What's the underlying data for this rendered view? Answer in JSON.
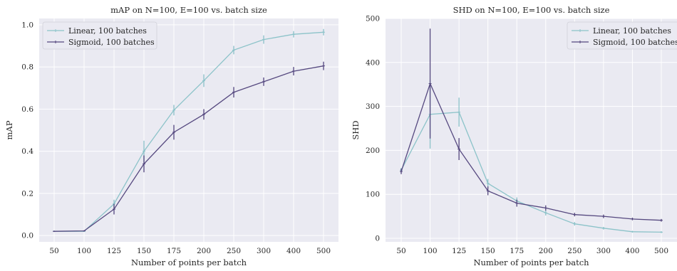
{
  "chart_data": [
    {
      "type": "line",
      "title": "mAP on N=100, E=100 vs. batch size",
      "xlabel": "Number of points per batch",
      "ylabel": "mAP",
      "categories": [
        "50",
        "100",
        "125",
        "150",
        "175",
        "200",
        "250",
        "300",
        "400",
        "500"
      ],
      "ylim": [
        -0.03,
        1.03
      ],
      "yticks": [
        0.0,
        0.2,
        0.4,
        0.6,
        0.8,
        1.0
      ],
      "ytick_labels": [
        "0.0",
        "0.2",
        "0.4",
        "0.6",
        "0.8",
        "1.0"
      ],
      "grid": true,
      "legend": "top-left",
      "series": [
        {
          "name": "Linear, 100 batches",
          "color": "#8cc3c9",
          "values": [
            0.02,
            0.02,
            0.15,
            0.4,
            0.595,
            0.735,
            0.88,
            0.93,
            0.955,
            0.965
          ],
          "errors": [
            0.003,
            0.003,
            0.02,
            0.05,
            0.025,
            0.03,
            0.02,
            0.02,
            0.015,
            0.015
          ]
        },
        {
          "name": "Sigmoid, 100 batches",
          "color": "#55487f",
          "values": [
            0.02,
            0.022,
            0.125,
            0.34,
            0.49,
            0.575,
            0.68,
            0.73,
            0.78,
            0.805
          ],
          "errors": [
            0.003,
            0.003,
            0.025,
            0.04,
            0.035,
            0.025,
            0.025,
            0.02,
            0.02,
            0.02
          ]
        }
      ]
    },
    {
      "type": "line",
      "title": "SHD on N=100, E=100 vs. batch size",
      "xlabel": "Number of points per batch",
      "ylabel": "SHD",
      "categories": [
        "50",
        "100",
        "125",
        "150",
        "175",
        "200",
        "250",
        "300",
        "400",
        "500"
      ],
      "ylim": [
        -8,
        500
      ],
      "yticks": [
        0,
        100,
        200,
        300,
        400,
        500
      ],
      "ytick_labels": [
        "0",
        "100",
        "200",
        "300",
        "400",
        "500"
      ],
      "grid": true,
      "legend": "top-right",
      "series": [
        {
          "name": "Linear, 100 batches",
          "color": "#8cc3c9",
          "values": [
            155,
            282,
            287,
            125,
            85,
            58,
            33,
            23,
            15,
            14
          ],
          "errors": [
            5,
            78,
            33,
            10,
            8,
            6,
            4,
            3,
            2,
            2
          ]
        },
        {
          "name": "Sigmoid, 100 batches",
          "color": "#55487f",
          "values": [
            152,
            352,
            203,
            108,
            80,
            69,
            54,
            50,
            44,
            41
          ],
          "errors": [
            6,
            125,
            25,
            10,
            8,
            6,
            4,
            4,
            3,
            3
          ]
        }
      ]
    }
  ]
}
